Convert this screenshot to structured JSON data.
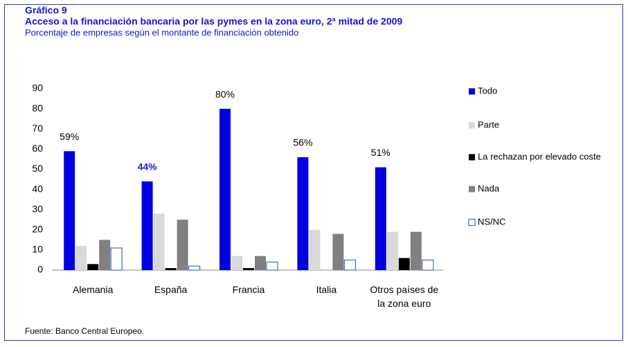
{
  "chart_data": {
    "type": "bar",
    "title": "Gráfico 9",
    "subtitle": "Acceso a la financiación bancaria por las pymes en la zona euro, 2ª mitad de 2009",
    "description": "Porcentaje de empresas según el montante de financiación obtenido",
    "source": "Fuente: Banco Central Europeo.",
    "categories": [
      "Alemania",
      "España",
      "Francia",
      "Italia",
      "Otros países de la zona euro"
    ],
    "series": [
      {
        "name": "Todo",
        "color": "#0000e0",
        "values": [
          59,
          44,
          80,
          56,
          51
        ],
        "value_labels": [
          "59%",
          "44%",
          "80%",
          "56%",
          "51%"
        ]
      },
      {
        "name": "Parte",
        "color": "#d9d9d9",
        "values": [
          12,
          28,
          7,
          20,
          19
        ]
      },
      {
        "name": "La rechazan por elevado coste",
        "color": "#000000",
        "values": [
          3,
          1,
          1,
          0,
          6
        ]
      },
      {
        "name": "Nada",
        "color": "#808080",
        "values": [
          15,
          25,
          7,
          18,
          19
        ]
      },
      {
        "name": "NS/NC",
        "color": "#ffffff",
        "edgecolor": "#3f6fc0",
        "values": [
          11,
          2,
          4,
          5,
          5
        ]
      }
    ],
    "ylim": [
      0,
      90
    ],
    "yticks": [
      0,
      10,
      20,
      30,
      40,
      50,
      60,
      70,
      80,
      90
    ],
    "grid": false,
    "legend": "right"
  }
}
